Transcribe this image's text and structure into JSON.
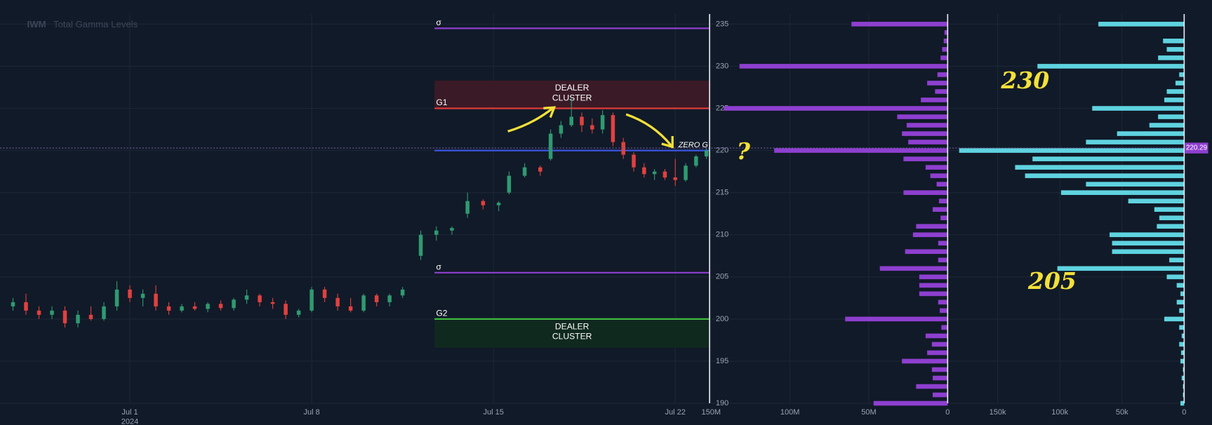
{
  "chart_data": [
    {
      "type": "candlestick",
      "title_ticker": "IWM",
      "title": "Total Gamma Levels",
      "x": [
        -3.5,
        -3,
        -2.5,
        -2,
        -1.5,
        -1,
        -0.5,
        0,
        0.5,
        1,
        1.5,
        2,
        2.5,
        3,
        3.5,
        4,
        4.5,
        5,
        5.5,
        6,
        6.5,
        7,
        7.5,
        8,
        8.5,
        9,
        9.5,
        10,
        10.5,
        11,
        11.5,
        12.2,
        12.8,
        13.4,
        14,
        14.6,
        15.2,
        15.6,
        16.2,
        16.8,
        17.2,
        17.6,
        18,
        18.4,
        18.8,
        19.2,
        19.6,
        20,
        20.4,
        20.8,
        21.2,
        21.6,
        22,
        22.4,
        22.8,
        23.2
      ],
      "open": [
        201.5,
        202,
        201,
        200.5,
        201,
        199.5,
        200.5,
        200,
        201.5,
        203.5,
        202.5,
        203,
        201.5,
        201,
        201.5,
        201.2,
        201.8,
        201.3,
        202.3,
        202.8,
        202,
        201.8,
        200.5,
        201,
        203.5,
        202.5,
        201.5,
        201,
        202.8,
        202,
        202.8,
        207.5,
        210,
        210.5,
        212.5,
        214,
        213.5,
        215,
        217,
        218,
        219,
        222,
        223,
        224,
        223,
        222.5,
        224.2,
        221,
        219.5,
        218,
        217.2,
        217.5,
        216.8,
        216.5,
        218.2,
        219.3
      ],
      "high": [
        202.5,
        203,
        201.5,
        201.5,
        201.5,
        201,
        201.5,
        202,
        204.5,
        204,
        203.5,
        204,
        202,
        201.8,
        202,
        202,
        202.2,
        202.5,
        203.5,
        203,
        202.5,
        202.2,
        201.2,
        203.8,
        203.8,
        203,
        202.5,
        203,
        203,
        203,
        203.8,
        210.5,
        211,
        211,
        215,
        214.2,
        214,
        217.5,
        218.5,
        218.2,
        222.5,
        223.5,
        226.2,
        224.5,
        223.8,
        224.8,
        224.5,
        221.5,
        219.8,
        218.5,
        217.8,
        217.8,
        219,
        218.5,
        219.5,
        220.3
      ],
      "low": [
        201,
        200.5,
        200,
        200,
        199,
        199,
        199.8,
        199.8,
        201,
        202,
        201.5,
        201,
        200.5,
        200.8,
        201,
        200.8,
        201,
        201,
        201.8,
        201.5,
        201.2,
        200,
        200.2,
        200.8,
        202,
        201,
        200.8,
        200.8,
        201.5,
        201.5,
        202.5,
        207,
        209.3,
        210,
        212,
        213,
        212.8,
        214.8,
        216.8,
        217,
        218.8,
        221.5,
        222.8,
        222.2,
        222,
        222,
        220.5,
        219,
        217.5,
        216.8,
        216.5,
        216.5,
        215.8,
        216.3,
        218,
        219
      ],
      "close": [
        202,
        201,
        200.5,
        201,
        199.5,
        200.5,
        200,
        201.5,
        203.5,
        202.5,
        203,
        201.5,
        201,
        201.5,
        201.2,
        201.8,
        201.3,
        202.3,
        202.8,
        202,
        201.8,
        200.5,
        201,
        203.5,
        202.5,
        201.5,
        201,
        202.8,
        202,
        202.8,
        203.5,
        210,
        210.5,
        210.8,
        214,
        213.5,
        213.8,
        217,
        218,
        217.5,
        222,
        223,
        224,
        223,
        222.5,
        224.2,
        221,
        219.5,
        218,
        217.2,
        217.5,
        216.8,
        216.5,
        218.2,
        219.3,
        220
      ],
      "up_color": "#2f9a70",
      "down_color": "#e0413f",
      "xlim": [
        -4,
        23.32
      ],
      "xticks": [
        {
          "value": 1,
          "label": "Jul 1"
        },
        {
          "value": 8,
          "label": "Jul 8"
        },
        {
          "value": 15,
          "label": "Jul 15"
        },
        {
          "value": 22,
          "label": "Jul 22"
        }
      ],
      "x_year": "2024",
      "ylim": [
        190,
        236.2
      ],
      "yticks": [
        190,
        195,
        200,
        205,
        210,
        215,
        220,
        225,
        230,
        235
      ],
      "grid": true,
      "level_start": 12.73,
      "levels": [
        {
          "label": "σ",
          "value": 234.5,
          "color": "#8e3fd0"
        },
        {
          "label": "G1",
          "value": 225,
          "color": "#e03a3a"
        },
        {
          "label": "ZERO G",
          "value": 220,
          "color": "#3a55e0",
          "label_side": "right"
        },
        {
          "label": "σ",
          "value": 205.5,
          "color": "#8e3fd0"
        },
        {
          "label": "G2",
          "value": 200,
          "color": "#3fb83f"
        }
      ],
      "zones": [
        {
          "label": "DEALER CLUSTER",
          "from": 225,
          "to": 228.3,
          "color": "#3a1a26"
        },
        {
          "label": "DEALER CLUSTER",
          "from": 196.6,
          "to": 200,
          "color": "#10291f"
        }
      ],
      "last_price": 220.29,
      "last_price_color": "#8e3fd0"
    },
    {
      "type": "hbar",
      "color": "#8e3fd0",
      "y": [
        235,
        234,
        233,
        232,
        231,
        230,
        229,
        228,
        227,
        226,
        225,
        224,
        223,
        222,
        221,
        220,
        219,
        218,
        217,
        216,
        215,
        214,
        213,
        212,
        211,
        210,
        209,
        208,
        207,
        206,
        205,
        204,
        203,
        202,
        201,
        200,
        199,
        198,
        197,
        196,
        195,
        194,
        193,
        192,
        191,
        190
      ],
      "values": [
        61000000,
        2000000,
        2500000,
        3500000,
        4500000,
        132000000,
        6500000,
        13000000,
        8000000,
        17000000,
        142000000,
        32000000,
        26000000,
        29000000,
        25000000,
        110000000,
        28000000,
        14000000,
        11000000,
        7000000,
        28000000,
        5500000,
        9500000,
        4500000,
        20000000,
        22000000,
        6000000,
        27000000,
        6000000,
        43000000,
        18000000,
        18000000,
        18000000,
        6000000,
        5000000,
        65000000,
        4000000,
        14000000,
        10000000,
        13000000,
        29000000,
        10000000,
        9500000,
        20000000,
        9500000,
        47000000
      ],
      "xlim": [
        150000000,
        0
      ],
      "xticks": [
        {
          "value": 150000000,
          "label": "150M"
        },
        {
          "value": 100000000,
          "label": "100M"
        },
        {
          "value": 50000000,
          "label": "50M"
        },
        0
      ]
    },
    {
      "type": "hbar",
      "color": "#5fd3e0",
      "y": [
        235,
        234,
        233,
        232,
        231,
        230,
        229,
        228,
        227,
        226,
        225,
        224,
        223,
        222,
        221,
        220,
        219,
        218,
        217,
        216,
        215,
        214,
        213,
        212,
        211,
        210,
        209,
        208,
        207,
        206,
        205,
        204,
        203,
        202,
        201,
        200,
        199,
        198,
        197,
        196,
        195,
        194,
        193,
        192,
        191,
        190
      ],
      "values": [
        69000,
        0,
        17000,
        14000,
        21000,
        118000,
        4000,
        7000,
        14000,
        16000,
        74000,
        21000,
        28000,
        54000,
        79000,
        181000,
        122000,
        136000,
        128000,
        79000,
        99000,
        45000,
        24000,
        20000,
        22000,
        60000,
        58000,
        58000,
        12000,
        102000,
        14000,
        6000,
        3000,
        6000,
        4000,
        16000,
        4000,
        2000,
        4000,
        2500,
        3000,
        1000,
        2000,
        1000,
        1000,
        3000
      ],
      "xlim": [
        189000,
        0
      ],
      "xticks": [
        {
          "value": 150000,
          "label": "150k"
        },
        {
          "value": 100000,
          "label": "100k"
        },
        {
          "value": 50000,
          "label": "50k"
        },
        0
      ]
    }
  ],
  "annotations": [
    {
      "text": "230"
    },
    {
      "text": "205"
    },
    {
      "text": "?"
    }
  ]
}
